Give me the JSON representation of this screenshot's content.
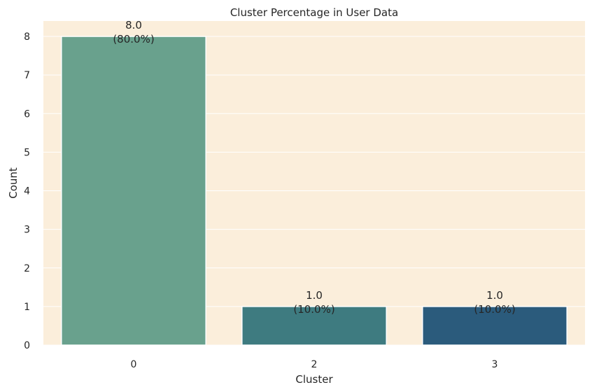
{
  "chart_data": {
    "type": "bar",
    "title": "Cluster Percentage in User Data",
    "xlabel": "Cluster",
    "ylabel": "Count",
    "categories": [
      "0",
      "2",
      "3"
    ],
    "values": [
      8,
      1,
      1
    ],
    "value_labels": [
      "8.0",
      "1.0",
      "1.0"
    ],
    "percent_labels": [
      "(80.0%)",
      "(10.0%)",
      "(10.0%)"
    ],
    "bar_colors": [
      "#69a18d",
      "#3e7b80",
      "#2b5b7c"
    ],
    "yticks": [
      "0",
      "1",
      "2",
      "3",
      "4",
      "5",
      "6",
      "7",
      "8"
    ],
    "ylim": [
      0,
      8.4
    ],
    "grid": true,
    "background_color": "#fbeedb",
    "grid_color": "#ffffff"
  }
}
